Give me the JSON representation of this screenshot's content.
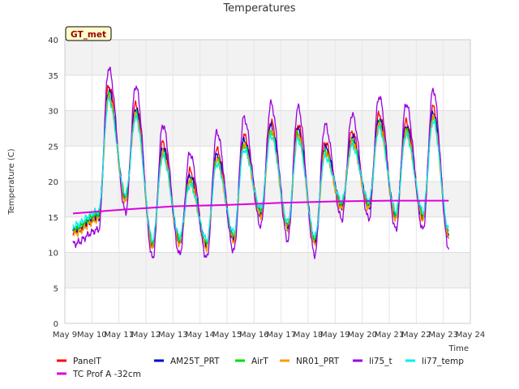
{
  "chart_data": {
    "type": "line",
    "title": "Temperatures",
    "xlabel": "Time",
    "ylabel": "Temperature (C)",
    "site_badge": "GT_met",
    "xlim": [
      9,
      24
    ],
    "ylim": [
      0,
      40
    ],
    "x_ticks": [
      9,
      10,
      11,
      12,
      13,
      14,
      15,
      16,
      17,
      18,
      19,
      20,
      21,
      22,
      23,
      24
    ],
    "x_tick_labels": [
      "May 9",
      "May 10",
      "May 11",
      "May 12",
      "May 13",
      "May 14",
      "May 15",
      "May 16",
      "May 17",
      "May 18",
      "May 19",
      "May 20",
      "May 21",
      "May 22",
      "May 23",
      "May 24"
    ],
    "y_ticks": [
      0,
      5,
      10,
      15,
      20,
      25,
      30,
      35,
      40
    ],
    "y_tick_labels": [
      "0",
      "5",
      "10",
      "15",
      "20",
      "25",
      "30",
      "35",
      "40"
    ],
    "grid": true,
    "legend_position": "bottom",
    "x_start": 9.3,
    "x_end": 23.2,
    "daily_extremes": {
      "days": [
        9.3,
        10,
        11,
        12,
        13,
        14,
        15,
        16,
        17,
        18,
        19,
        20,
        21,
        22,
        23
      ],
      "peaks": [
        null,
        32.5,
        30.0,
        24.5,
        20.5,
        23.5,
        25.5,
        27.5,
        27.0,
        24.5,
        26.0,
        28.5,
        27.5,
        29.5,
        27.0
      ],
      "troughs": [
        13.0,
        15.0,
        17.5,
        11.0,
        11.5,
        11.0,
        12.0,
        15.5,
        13.5,
        11.5,
        16.5,
        16.5,
        15.0,
        15.0,
        12.5
      ]
    },
    "series": [
      {
        "name": "PanelT",
        "color": "#ff0000",
        "peak_offset": 1.0,
        "trough_offset": 0.0
      },
      {
        "name": "AM25T_PRT",
        "color": "#0000cc",
        "peak_offset": 0.3,
        "trough_offset": 0.0
      },
      {
        "name": "AirT",
        "color": "#00dd00",
        "peak_offset": -0.3,
        "trough_offset": 0.2
      },
      {
        "name": "NR01_PRT",
        "color": "#ff9900",
        "peak_offset": -0.5,
        "trough_offset": -0.4
      },
      {
        "name": "li75_t",
        "color": "#9900dd",
        "peak_offset": 3.5,
        "trough_offset": -1.8
      },
      {
        "name": "li77_temp",
        "color": "#00eeee",
        "peak_offset": -1.0,
        "trough_offset": 0.8
      },
      {
        "name": "TC Prof A -32cm",
        "color": "#dd00dd",
        "x": [
          9.3,
          11,
          13,
          15,
          17,
          19,
          21,
          23.2
        ],
        "y": [
          15.5,
          16.0,
          16.5,
          16.7,
          17.0,
          17.2,
          17.3,
          17.3
        ]
      }
    ]
  }
}
